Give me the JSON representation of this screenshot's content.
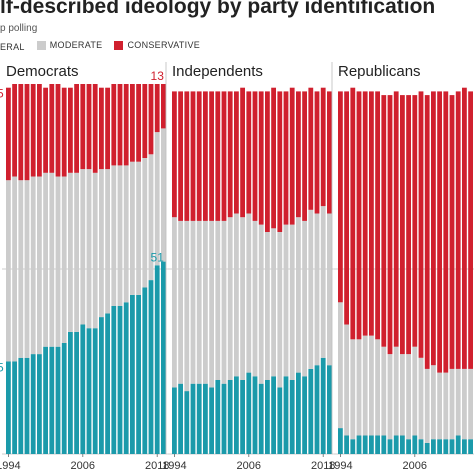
{
  "title": "lf-described ideology by party identification",
  "subtitle": "p polling",
  "legend": [
    {
      "name": "ERAL",
      "color": "#1b9aaa"
    },
    {
      "name": "MODERATE",
      "color": "#cccccc"
    },
    {
      "name": "CONSERVATIVE",
      "color": "#d0202e"
    }
  ],
  "colors": {
    "liberal": "#1b9aaa",
    "moderate": "#cccccc",
    "conservative": "#d0202e"
  },
  "chart_data": {
    "type": "bar",
    "stacked": true,
    "years": [
      1994,
      1995,
      1996,
      1997,
      1998,
      1999,
      2000,
      2001,
      2002,
      2003,
      2004,
      2005,
      2006,
      2007,
      2008,
      2009,
      2010,
      2011,
      2012,
      2013,
      2014,
      2015,
      2016,
      2017,
      2018,
      2019
    ],
    "x_tick_labels": [
      "1994",
      "2006",
      "2018"
    ],
    "ylim": [
      0,
      100
    ],
    "panels": [
      {
        "name": "Democrats",
        "series": [
          {
            "name": "Liberal",
            "values": [
              25,
              25,
              26,
              26,
              27,
              27,
              29,
              29,
              29,
              30,
              33,
              33,
              35,
              34,
              34,
              37,
              38,
              40,
              40,
              41,
              43,
              43,
              45,
              47,
              51,
              52
            ]
          },
          {
            "name": "Moderate",
            "values": [
              49,
              50,
              48,
              48,
              48,
              48,
              47,
              47,
              46,
              45,
              43,
              43,
              42,
              43,
              42,
              40,
              39,
              38,
              38,
              37,
              36,
              36,
              35,
              34,
              36,
              36
            ]
          },
          {
            "name": "Conservative",
            "values": [
              25,
              25,
              26,
              26,
              25,
              25,
              23,
              24,
              25,
              24,
              23,
              24,
              23,
              23,
              24,
              22,
              22,
              22,
              22,
              22,
              21,
              21,
              20,
              19,
              13,
              12
            ]
          }
        ],
        "labels": [
          {
            "text": "51",
            "series": "Liberal"
          },
          {
            "text": "13",
            "series": "Conservative"
          }
        ],
        "left_labels": [
          {
            "text": "5",
            "series": "Liberal"
          },
          {
            "text": "5",
            "series": "Conservative"
          }
        ]
      },
      {
        "name": "Independents",
        "series": [
          {
            "name": "Liberal",
            "values": [
              18,
              19,
              17,
              19,
              19,
              19,
              18,
              20,
              19,
              20,
              21,
              20,
              22,
              21,
              19,
              20,
              21,
              18,
              21,
              20,
              22,
              21,
              23,
              24,
              26,
              24
            ]
          },
          {
            "name": "Moderate",
            "values": [
              46,
              44,
              46,
              44,
              44,
              44,
              45,
              43,
              44,
              44,
              44,
              44,
              43,
              42,
              43,
              40,
              40,
              42,
              41,
              42,
              42,
              42,
              43,
              41,
              41,
              41
            ]
          },
          {
            "name": "Conservative",
            "values": [
              34,
              35,
              35,
              35,
              35,
              35,
              35,
              35,
              35,
              34,
              33,
              35,
              33,
              35,
              36,
              38,
              38,
              38,
              36,
              37,
              34,
              35,
              33,
              33,
              32,
              33
            ]
          }
        ]
      },
      {
        "name": "Republicans",
        "series": [
          {
            "name": "Liberal",
            "values": [
              7,
              5,
              4,
              5,
              5,
              5,
              5,
              5,
              4,
              5,
              5,
              4,
              5,
              4,
              3,
              4,
              4,
              4,
              4,
              5,
              4,
              4,
              5,
              6,
              7,
              6
            ]
          },
          {
            "name": "Moderate",
            "values": [
              34,
              30,
              27,
              26,
              27,
              27,
              26,
              24,
              23,
              24,
              22,
              23,
              24,
              22,
              20,
              20,
              18,
              18,
              19,
              18,
              19,
              19,
              19,
              17,
              21,
              23
            ]
          },
          {
            "name": "Conservative",
            "values": [
              57,
              63,
              68,
              67,
              66,
              66,
              67,
              68,
              70,
              69,
              70,
              70,
              68,
              72,
              74,
              74,
              76,
              76,
              74,
              75,
              76,
              75,
              73,
              75,
              70,
              69
            ]
          }
        ]
      }
    ]
  }
}
